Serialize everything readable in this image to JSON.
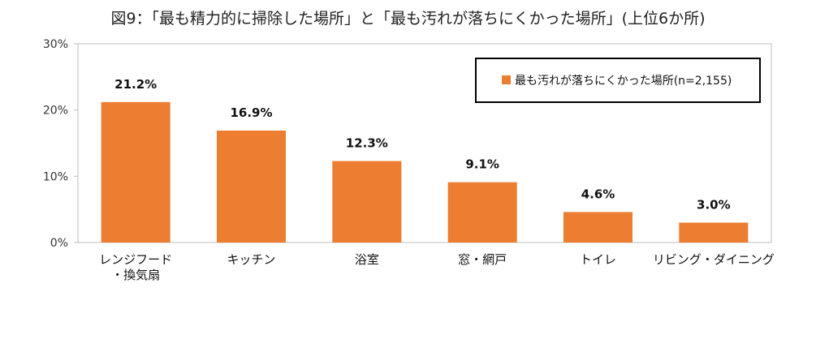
{
  "chart_data": {
    "type": "bar",
    "title": "図9：「最も精力的に掃除した場所」と「最も汚れが落ちにくかった場所」(上位6か所)",
    "categories": [
      [
        "レンジフード",
        "・換気扇"
      ],
      [
        "キッチン"
      ],
      [
        "浴室"
      ],
      [
        "窓・網戸"
      ],
      [
        "トイレ"
      ],
      [
        "リビング・ダイニング"
      ]
    ],
    "series": [
      {
        "name": "最も汚れが落ちにくかった場所(n=2,155)",
        "values": [
          21.2,
          16.9,
          12.3,
          9.1,
          4.6,
          3.0
        ],
        "labels": [
          "21.2%",
          "16.9%",
          "12.3%",
          "9.1%",
          "4.6%",
          "3.0%"
        ]
      }
    ],
    "ylim": [
      0,
      30
    ],
    "yticks": [
      0,
      10,
      20,
      30
    ],
    "ytick_labels": [
      "0%",
      "10%",
      "20%",
      "30%"
    ],
    "xlabel": "",
    "ylabel": "",
    "legend_position": "top-right",
    "grid": false
  },
  "colors": {
    "bar": "#ED7D31",
    "axis": "#bfbfbf",
    "legend_border": "#000000"
  }
}
